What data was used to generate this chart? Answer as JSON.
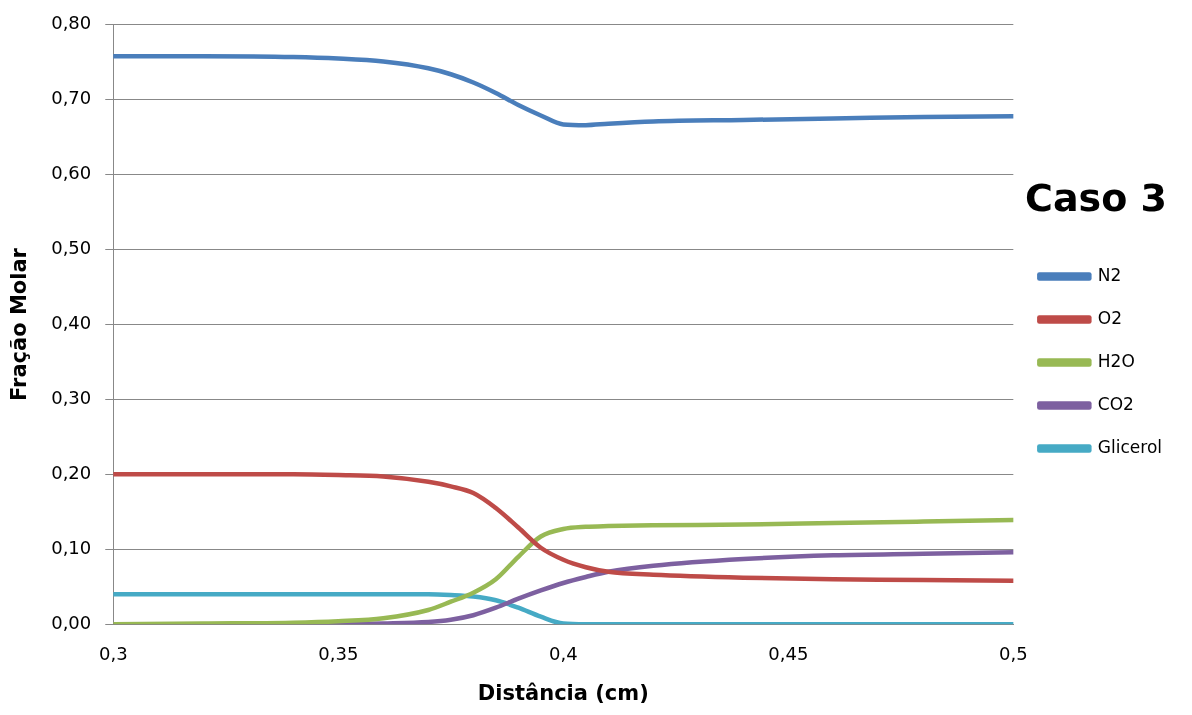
{
  "chart_data": {
    "type": "line",
    "title": "Caso 3",
    "xlabel": "Distância (cm)",
    "ylabel": "Fração Molar",
    "x": [
      0.3,
      0.32,
      0.34,
      0.35,
      0.36,
      0.37,
      0.375,
      0.38,
      0.385,
      0.39,
      0.395,
      0.4,
      0.405,
      0.41,
      0.42,
      0.44,
      0.46,
      0.48,
      0.5
    ],
    "series": [
      {
        "name": "N2",
        "color": "#4a7ebb",
        "values": [
          0.758,
          0.758,
          0.757,
          0.755,
          0.751,
          0.742,
          0.734,
          0.723,
          0.709,
          0.693,
          0.679,
          0.667,
          0.666,
          0.668,
          0.671,
          0.673,
          0.675,
          0.677,
          0.678
        ]
      },
      {
        "name": "O2",
        "color": "#be4b48",
        "values": [
          0.2,
          0.2,
          0.2,
          0.199,
          0.197,
          0.19,
          0.184,
          0.175,
          0.155,
          0.129,
          0.102,
          0.086,
          0.076,
          0.07,
          0.066,
          0.062,
          0.06,
          0.059,
          0.058
        ]
      },
      {
        "name": "H2O",
        "color": "#98b954",
        "values": [
          0,
          0.001,
          0.002,
          0.004,
          0.008,
          0.019,
          0.03,
          0.042,
          0.06,
          0.09,
          0.117,
          0.127,
          0.13,
          0.131,
          0.132,
          0.133,
          0.135,
          0.137,
          0.139
        ]
      },
      {
        "name": "CO2",
        "color": "#7d60a0",
        "values": [
          0,
          0,
          0,
          0,
          0.001,
          0.003,
          0.006,
          0.012,
          0.022,
          0.034,
          0.045,
          0.055,
          0.063,
          0.07,
          0.078,
          0.087,
          0.092,
          0.094,
          0.096
        ]
      },
      {
        "name": "Glicerol",
        "color": "#46aac5",
        "values": [
          0.04,
          0.04,
          0.04,
          0.04,
          0.04,
          0.04,
          0.039,
          0.037,
          0.032,
          0.022,
          0.01,
          0.001,
          0,
          0,
          0,
          0,
          0,
          0,
          0
        ]
      }
    ],
    "xlim": [
      0.3,
      0.5
    ],
    "xticks": [
      {
        "value": 0.3,
        "label": "0,3"
      },
      {
        "value": 0.35,
        "label": "0,35"
      },
      {
        "value": 0.4,
        "label": "0,4"
      },
      {
        "value": 0.45,
        "label": "0,45"
      },
      {
        "value": 0.5,
        "label": "0,5"
      }
    ],
    "ylim": [
      0,
      0.8
    ],
    "yticks": [
      {
        "value": 0,
        "label": "0,00"
      },
      {
        "value": 0.1,
        "label": "0,10"
      },
      {
        "value": 0.2,
        "label": "0,20"
      },
      {
        "value": 0.3,
        "label": "0,30"
      },
      {
        "value": 0.4,
        "label": "0,40"
      },
      {
        "value": 0.5,
        "label": "0,50"
      },
      {
        "value": 0.6,
        "label": "0,60"
      },
      {
        "value": 0.7,
        "label": "0,70"
      },
      {
        "value": 0.8,
        "label": "0,80"
      }
    ],
    "grid": "y",
    "legend": "right",
    "marker": "none",
    "line_style": "solid"
  }
}
